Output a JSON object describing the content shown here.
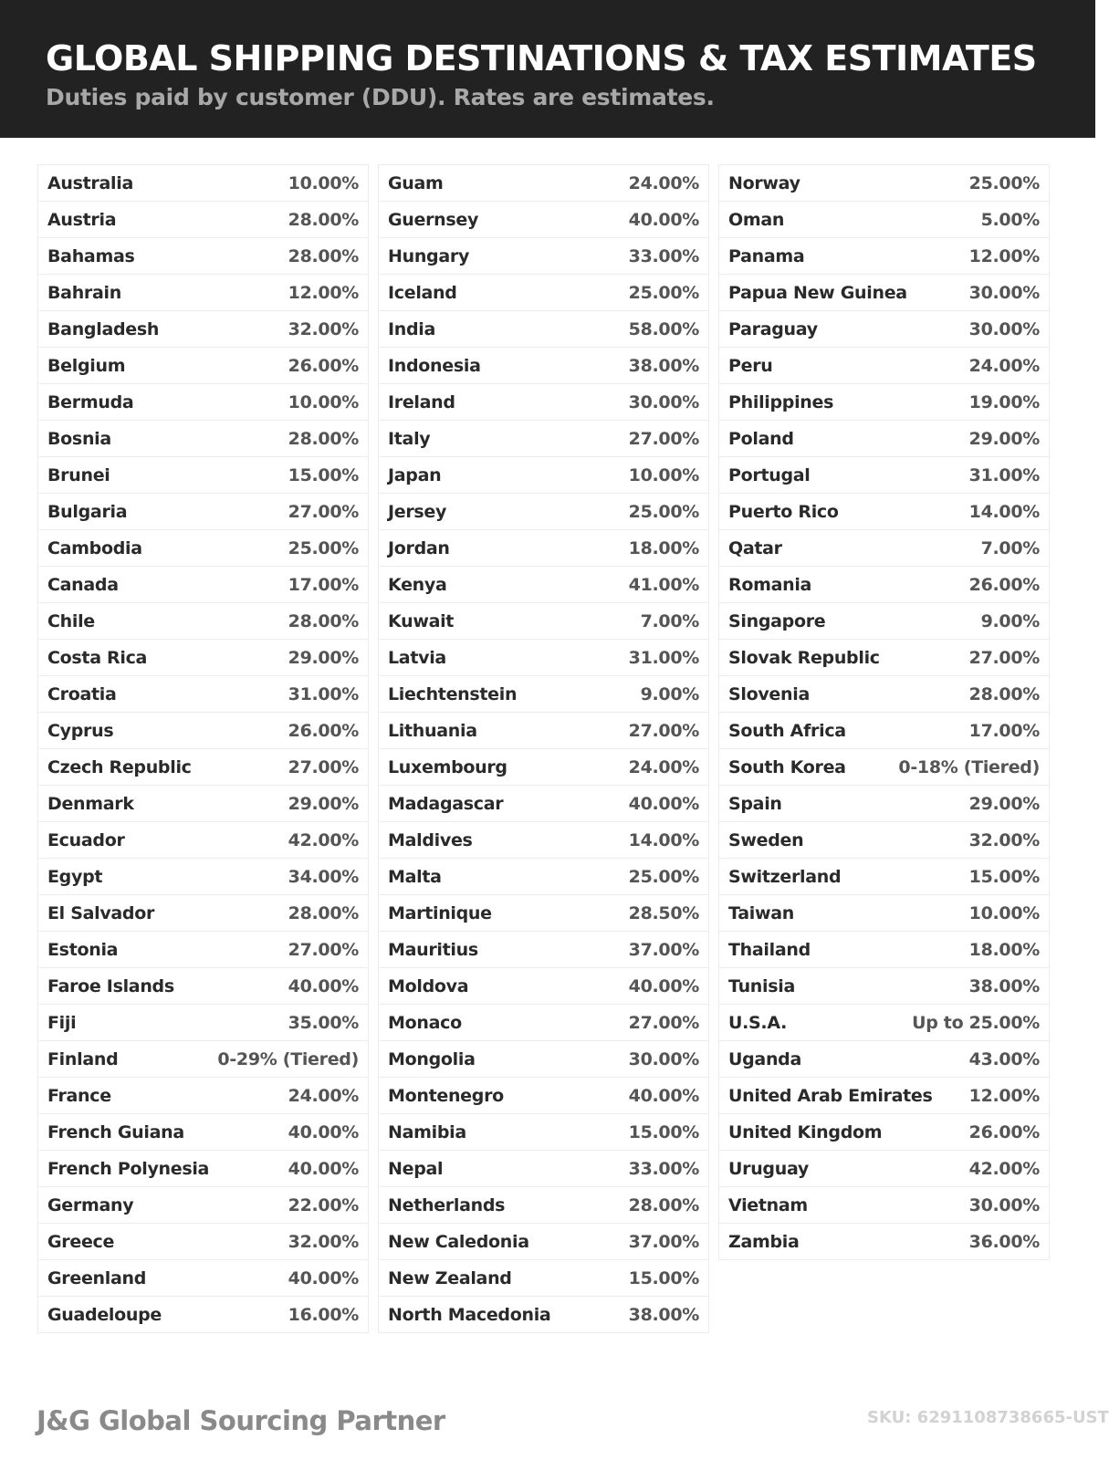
{
  "header": {
    "title": "GLOBAL SHIPPING DESTINATIONS & TAX ESTIMATES",
    "subtitle": "Duties paid by customer (DDU). Rates are estimates."
  },
  "columns": [
    [
      [
        "Australia",
        "10.00%"
      ],
      [
        "Austria",
        "28.00%"
      ],
      [
        "Bahamas",
        "28.00%"
      ],
      [
        "Bahrain",
        "12.00%"
      ],
      [
        "Bangladesh",
        "32.00%"
      ],
      [
        "Belgium",
        "26.00%"
      ],
      [
        "Bermuda",
        "10.00%"
      ],
      [
        "Bosnia",
        "28.00%"
      ],
      [
        "Brunei",
        "15.00%"
      ],
      [
        "Bulgaria",
        "27.00%"
      ],
      [
        "Cambodia",
        "25.00%"
      ],
      [
        "Canada",
        "17.00%"
      ],
      [
        "Chile",
        "28.00%"
      ],
      [
        "Costa Rica",
        "29.00%"
      ],
      [
        "Croatia",
        "31.00%"
      ],
      [
        "Cyprus",
        "26.00%"
      ],
      [
        "Czech Republic",
        "27.00%"
      ],
      [
        "Denmark",
        "29.00%"
      ],
      [
        "Ecuador",
        "42.00%"
      ],
      [
        "Egypt",
        "34.00%"
      ],
      [
        "El Salvador",
        "28.00%"
      ],
      [
        "Estonia",
        "27.00%"
      ],
      [
        "Faroe Islands",
        "40.00%"
      ],
      [
        "Fiji",
        "35.00%"
      ],
      [
        "Finland",
        "0-29% (Tiered)"
      ],
      [
        "France",
        "24.00%"
      ],
      [
        "French Guiana",
        "40.00%"
      ],
      [
        "French Polynesia",
        "40.00%"
      ],
      [
        "Germany",
        "22.00%"
      ],
      [
        "Greece",
        "32.00%"
      ],
      [
        "Greenland",
        "40.00%"
      ],
      [
        "Guadeloupe",
        "16.00%"
      ]
    ],
    [
      [
        "Guam",
        "24.00%"
      ],
      [
        "Guernsey",
        "40.00%"
      ],
      [
        "Hungary",
        "33.00%"
      ],
      [
        "Iceland",
        "25.00%"
      ],
      [
        "India",
        "58.00%"
      ],
      [
        "Indonesia",
        "38.00%"
      ],
      [
        "Ireland",
        "30.00%"
      ],
      [
        "Italy",
        "27.00%"
      ],
      [
        "Japan",
        "10.00%"
      ],
      [
        "Jersey",
        "25.00%"
      ],
      [
        "Jordan",
        "18.00%"
      ],
      [
        "Kenya",
        "41.00%"
      ],
      [
        "Kuwait",
        "7.00%"
      ],
      [
        "Latvia",
        "31.00%"
      ],
      [
        "Liechtenstein",
        "9.00%"
      ],
      [
        "Lithuania",
        "27.00%"
      ],
      [
        "Luxembourg",
        "24.00%"
      ],
      [
        "Madagascar",
        "40.00%"
      ],
      [
        "Maldives",
        "14.00%"
      ],
      [
        "Malta",
        "25.00%"
      ],
      [
        "Martinique",
        "28.50%"
      ],
      [
        "Mauritius",
        "37.00%"
      ],
      [
        "Moldova",
        "40.00%"
      ],
      [
        "Monaco",
        "27.00%"
      ],
      [
        "Mongolia",
        "30.00%"
      ],
      [
        "Montenegro",
        "40.00%"
      ],
      [
        "Namibia",
        "15.00%"
      ],
      [
        "Nepal",
        "33.00%"
      ],
      [
        "Netherlands",
        "28.00%"
      ],
      [
        "New Caledonia",
        "37.00%"
      ],
      [
        "New Zealand",
        "15.00%"
      ],
      [
        "North Macedonia",
        "38.00%"
      ]
    ],
    [
      [
        "Norway",
        "25.00%"
      ],
      [
        "Oman",
        "5.00%"
      ],
      [
        "Panama",
        "12.00%"
      ],
      [
        "Papua New Guinea",
        "30.00%"
      ],
      [
        "Paraguay",
        "30.00%"
      ],
      [
        "Peru",
        "24.00%"
      ],
      [
        "Philippines",
        "19.00%"
      ],
      [
        "Poland",
        "29.00%"
      ],
      [
        "Portugal",
        "31.00%"
      ],
      [
        "Puerto Rico",
        "14.00%"
      ],
      [
        "Qatar",
        "7.00%"
      ],
      [
        "Romania",
        "26.00%"
      ],
      [
        "Singapore",
        "9.00%"
      ],
      [
        "Slovak Republic",
        "27.00%"
      ],
      [
        "Slovenia",
        "28.00%"
      ],
      [
        "South Africa",
        "17.00%"
      ],
      [
        "South Korea",
        "0-18% (Tiered)"
      ],
      [
        "Spain",
        "29.00%"
      ],
      [
        "Sweden",
        "32.00%"
      ],
      [
        "Switzerland",
        "15.00%"
      ],
      [
        "Taiwan",
        "10.00%"
      ],
      [
        "Thailand",
        "18.00%"
      ],
      [
        "Tunisia",
        "38.00%"
      ],
      [
        "U.S.A.",
        "Up to 25.00%"
      ],
      [
        "Uganda",
        "43.00%"
      ],
      [
        "United Arab Emirates",
        "12.00%"
      ],
      [
        "United Kingdom",
        "26.00%"
      ],
      [
        "Uruguay",
        "42.00%"
      ],
      [
        "Vietnam",
        "30.00%"
      ],
      [
        "Zambia",
        "36.00%"
      ]
    ]
  ],
  "footer": {
    "brand": "J&G Global Sourcing Partner",
    "sku": "SKU: 6291108738665-UST"
  }
}
